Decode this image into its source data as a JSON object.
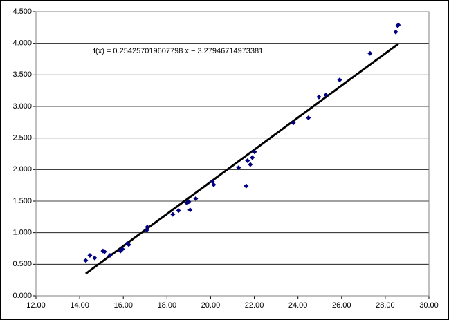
{
  "chart_data": {
    "type": "scatter",
    "x": [
      14.28,
      14.47,
      14.69,
      15.07,
      15.14,
      15.39,
      15.87,
      15.96,
      16.18,
      16.25,
      17.07,
      17.1,
      18.27,
      18.53,
      18.91,
      19.0,
      19.06,
      19.32,
      20.08,
      20.14,
      21.28,
      21.63,
      21.69,
      21.82,
      21.91,
      22.01,
      23.79,
      24.48,
      24.96,
      25.28,
      25.91,
      27.3,
      28.48,
      28.57,
      28.6
    ],
    "values": [
      0.56,
      0.64,
      0.6,
      0.71,
      0.7,
      0.64,
      0.71,
      0.74,
      0.83,
      0.81,
      1.04,
      1.09,
      1.29,
      1.35,
      1.47,
      1.49,
      1.36,
      1.54,
      1.81,
      1.76,
      2.03,
      1.74,
      2.14,
      2.08,
      2.19,
      2.28,
      2.74,
      2.82,
      3.15,
      3.18,
      3.42,
      3.84,
      4.18,
      4.28,
      4.29
    ],
    "color": "#000080",
    "trendline": {
      "label": "f(x) = 0.254257019607798 x − 3.27946714973381",
      "slope": 0.254257019607798,
      "intercept": -3.27946714973381,
      "color": "#000000"
    },
    "xlim": [
      12,
      30
    ],
    "xticks": [
      {
        "value": 12,
        "label": "12.00"
      },
      {
        "value": 14,
        "label": "14.00"
      },
      {
        "value": 16,
        "label": "16.00"
      },
      {
        "value": 18,
        "label": "18.00"
      },
      {
        "value": 20,
        "label": "20.00"
      },
      {
        "value": 22,
        "label": "22.00"
      },
      {
        "value": 24,
        "label": "24.00"
      },
      {
        "value": 26,
        "label": "26.00"
      },
      {
        "value": 28,
        "label": "28.00"
      },
      {
        "value": 30,
        "label": "30.00"
      }
    ],
    "ylim": [
      0,
      4.5
    ],
    "yticks": [
      {
        "value": 0,
        "label": "0.000"
      },
      {
        "value": 0.5,
        "label": "0.500"
      },
      {
        "value": 1,
        "label": "1.000"
      },
      {
        "value": 1.5,
        "label": "1.500"
      },
      {
        "value": 2,
        "label": "2.000"
      },
      {
        "value": 2.5,
        "label": "2.500"
      },
      {
        "value": 3,
        "label": "3.000"
      },
      {
        "value": 3.5,
        "label": "3.500"
      },
      {
        "value": 4,
        "label": "4.000"
      },
      {
        "value": 4.5,
        "label": "4.500"
      }
    ],
    "grid": true
  }
}
